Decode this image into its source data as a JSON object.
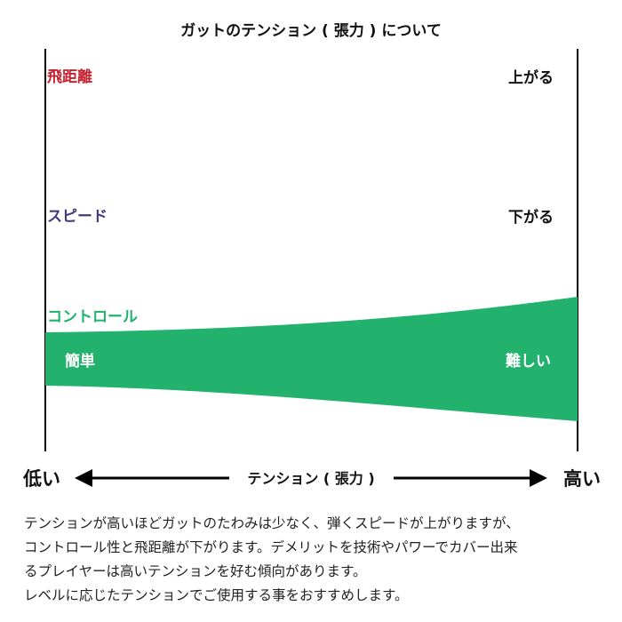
{
  "title": "ガットのテンション ( 張力 ) について",
  "series": {
    "distance": {
      "label": "飛距離",
      "color": "#c4222e"
    },
    "speed": {
      "label": "スピード",
      "color": "#46387a"
    },
    "control": {
      "label": "コントロール",
      "color": "#22b26e",
      "left_text": "簡単",
      "right_text": "難しい"
    }
  },
  "trend_labels": {
    "up": "上がる",
    "down": "下がる"
  },
  "axis": {
    "left": "低い",
    "center": "テンション ( 張力 )",
    "right": "高い",
    "line_color": "#000000"
  },
  "description": [
    "テンションが高いほどガットのたわみは少なく、弾くスピードが上がりますが、",
    "コントロール性と飛距離が下がります。デメリットを技術やパワーでカバー出来",
    "るプレイヤーは高いテンションを好む傾向があります。",
    "レベルに応じたテンションでご使用する事をおすすめします。"
  ]
}
